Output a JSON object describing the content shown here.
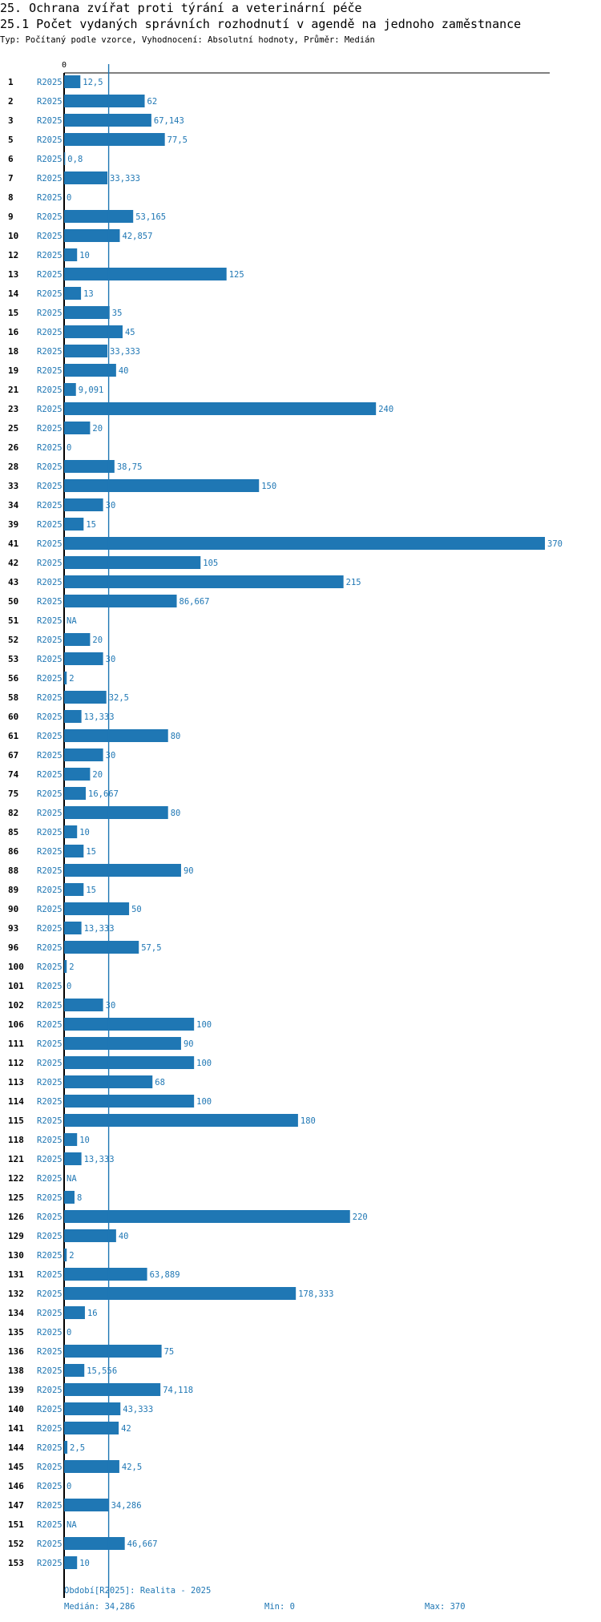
{
  "header": {
    "section_title": "25. Ochrana zvířat proti týrání a veterinární péče",
    "chart_title": "25.1 Počet vydaných správních rozhodnutí v agendě na jednoho zaměstnance",
    "subtitle": "Typ: Počítaný podle vzorce, Vyhodnocení: Absolutní hodnoty, Průměr: Medián"
  },
  "colors": {
    "bar": "#1f77b4",
    "label": "#1f77b4",
    "axis": "#000000",
    "median_line": "#1f77b4"
  },
  "chart_data": {
    "type": "bar",
    "orientation": "horizontal",
    "series_name": "R2025",
    "axis_zero_label": "0",
    "xlim": [
      0,
      370
    ],
    "median": 34.286,
    "rows": [
      {
        "id": "1",
        "value": 12.5,
        "label": "12,5"
      },
      {
        "id": "2",
        "value": 62,
        "label": "62"
      },
      {
        "id": "3",
        "value": 67.143,
        "label": "67,143"
      },
      {
        "id": "5",
        "value": 77.5,
        "label": "77,5"
      },
      {
        "id": "6",
        "value": 0.8,
        "label": "0,8"
      },
      {
        "id": "7",
        "value": 33.333,
        "label": "33,333"
      },
      {
        "id": "8",
        "value": 0,
        "label": "0"
      },
      {
        "id": "9",
        "value": 53.165,
        "label": "53,165"
      },
      {
        "id": "10",
        "value": 42.857,
        "label": "42,857"
      },
      {
        "id": "12",
        "value": 10,
        "label": "10"
      },
      {
        "id": "13",
        "value": 125,
        "label": "125"
      },
      {
        "id": "14",
        "value": 13,
        "label": "13"
      },
      {
        "id": "15",
        "value": 35,
        "label": "35"
      },
      {
        "id": "16",
        "value": 45,
        "label": "45"
      },
      {
        "id": "18",
        "value": 33.333,
        "label": "33,333"
      },
      {
        "id": "19",
        "value": 40,
        "label": "40"
      },
      {
        "id": "21",
        "value": 9.091,
        "label": "9,091"
      },
      {
        "id": "23",
        "value": 240,
        "label": "240"
      },
      {
        "id": "25",
        "value": 20,
        "label": "20"
      },
      {
        "id": "26",
        "value": 0,
        "label": "0"
      },
      {
        "id": "28",
        "value": 38.75,
        "label": "38,75"
      },
      {
        "id": "33",
        "value": 150,
        "label": "150"
      },
      {
        "id": "34",
        "value": 30,
        "label": "30"
      },
      {
        "id": "39",
        "value": 15,
        "label": "15"
      },
      {
        "id": "41",
        "value": 370,
        "label": "370"
      },
      {
        "id": "42",
        "value": 105,
        "label": "105"
      },
      {
        "id": "43",
        "value": 215,
        "label": "215"
      },
      {
        "id": "50",
        "value": 86.667,
        "label": "86,667"
      },
      {
        "id": "51",
        "value": null,
        "label": "NA"
      },
      {
        "id": "52",
        "value": 20,
        "label": "20"
      },
      {
        "id": "53",
        "value": 30,
        "label": "30"
      },
      {
        "id": "56",
        "value": 2,
        "label": "2"
      },
      {
        "id": "58",
        "value": 32.5,
        "label": "32,5"
      },
      {
        "id": "60",
        "value": 13.333,
        "label": "13,333"
      },
      {
        "id": "61",
        "value": 80,
        "label": "80"
      },
      {
        "id": "67",
        "value": 30,
        "label": "30"
      },
      {
        "id": "74",
        "value": 20,
        "label": "20"
      },
      {
        "id": "75",
        "value": 16.667,
        "label": "16,667"
      },
      {
        "id": "82",
        "value": 80,
        "label": "80"
      },
      {
        "id": "85",
        "value": 10,
        "label": "10"
      },
      {
        "id": "86",
        "value": 15,
        "label": "15"
      },
      {
        "id": "88",
        "value": 90,
        "label": "90"
      },
      {
        "id": "89",
        "value": 15,
        "label": "15"
      },
      {
        "id": "90",
        "value": 50,
        "label": "50"
      },
      {
        "id": "93",
        "value": 13.333,
        "label": "13,333"
      },
      {
        "id": "96",
        "value": 57.5,
        "label": "57,5"
      },
      {
        "id": "100",
        "value": 2,
        "label": "2"
      },
      {
        "id": "101",
        "value": 0,
        "label": "0"
      },
      {
        "id": "102",
        "value": 30,
        "label": "30"
      },
      {
        "id": "106",
        "value": 100,
        "label": "100"
      },
      {
        "id": "111",
        "value": 90,
        "label": "90"
      },
      {
        "id": "112",
        "value": 100,
        "label": "100"
      },
      {
        "id": "113",
        "value": 68,
        "label": "68"
      },
      {
        "id": "114",
        "value": 100,
        "label": "100"
      },
      {
        "id": "115",
        "value": 180,
        "label": "180"
      },
      {
        "id": "118",
        "value": 10,
        "label": "10"
      },
      {
        "id": "121",
        "value": 13.333,
        "label": "13,333"
      },
      {
        "id": "122",
        "value": null,
        "label": "NA"
      },
      {
        "id": "125",
        "value": 8,
        "label": "8"
      },
      {
        "id": "126",
        "value": 220,
        "label": "220"
      },
      {
        "id": "129",
        "value": 40,
        "label": "40"
      },
      {
        "id": "130",
        "value": 2,
        "label": "2"
      },
      {
        "id": "131",
        "value": 63.889,
        "label": "63,889"
      },
      {
        "id": "132",
        "value": 178.333,
        "label": "178,333"
      },
      {
        "id": "134",
        "value": 16,
        "label": "16"
      },
      {
        "id": "135",
        "value": 0,
        "label": "0"
      },
      {
        "id": "136",
        "value": 75,
        "label": "75"
      },
      {
        "id": "138",
        "value": 15.556,
        "label": "15,556"
      },
      {
        "id": "139",
        "value": 74.118,
        "label": "74,118"
      },
      {
        "id": "140",
        "value": 43.333,
        "label": "43,333"
      },
      {
        "id": "141",
        "value": 42,
        "label": "42"
      },
      {
        "id": "144",
        "value": 2.5,
        "label": "2,5"
      },
      {
        "id": "145",
        "value": 42.5,
        "label": "42,5"
      },
      {
        "id": "146",
        "value": 0,
        "label": "0"
      },
      {
        "id": "147",
        "value": 34.286,
        "label": "34,286"
      },
      {
        "id": "151",
        "value": null,
        "label": "NA"
      },
      {
        "id": "152",
        "value": 46.667,
        "label": "46,667"
      },
      {
        "id": "153",
        "value": 10,
        "label": "10"
      }
    ]
  },
  "footer": {
    "period_text": "Období[R2025]: Realita - 2025",
    "median_text": "Medián: 34,286",
    "min_text": "Min: 0",
    "max_text": "Max: 370"
  }
}
